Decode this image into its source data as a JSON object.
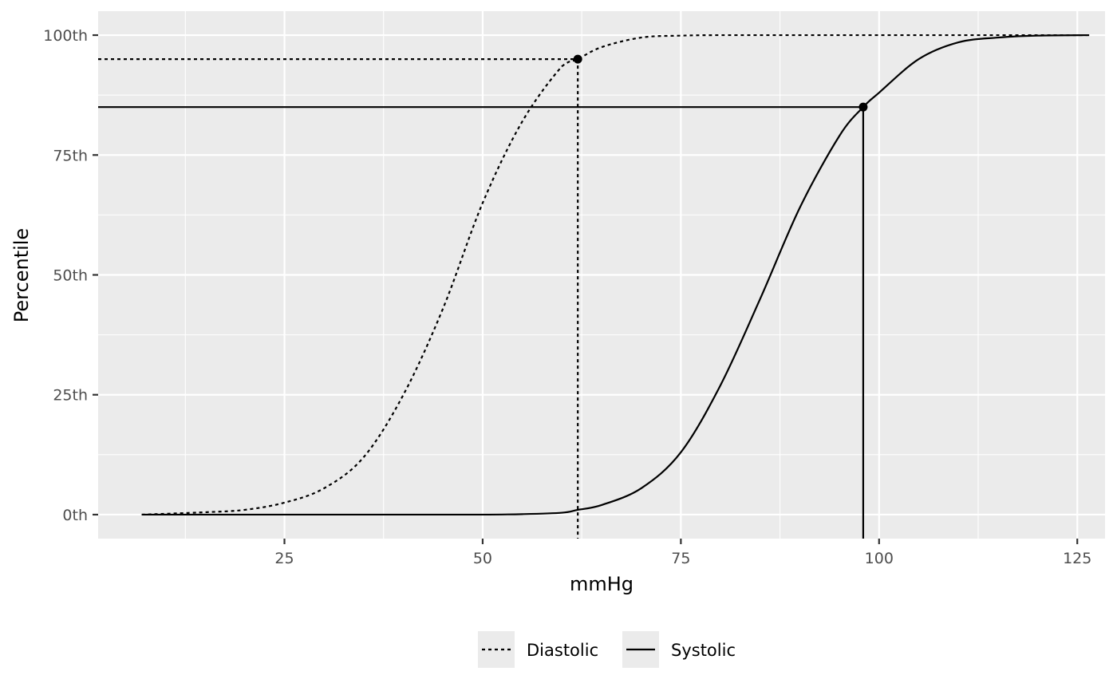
{
  "chart_data": {
    "type": "line",
    "title": "",
    "xlabel": "mmHg",
    "ylabel": "Percentile",
    "xlim": [
      1.5,
      128.5
    ],
    "ylim": [
      -5,
      105
    ],
    "x_ticks": [
      25,
      50,
      75,
      100,
      125
    ],
    "x_tick_labels": [
      "25",
      "50",
      "75",
      "100",
      "125"
    ],
    "y_ticks": [
      0,
      25,
      50,
      75,
      100
    ],
    "y_tick_labels": [
      "0th",
      "25th",
      "50th",
      "75th",
      "100th"
    ],
    "grid": true,
    "legend_position": "bottom",
    "series": [
      {
        "name": "Diastolic",
        "linetype": "dotted",
        "x": [
          7,
          15,
          20,
          25,
          30,
          35,
          40,
          45,
          50,
          55,
          60,
          62,
          65,
          70,
          75,
          80,
          90,
          100,
          110,
          120,
          126.5
        ],
        "y": [
          0,
          0.5,
          1,
          2.5,
          5.5,
          12,
          25,
          43,
          65,
          82,
          93.5,
          95,
          97.5,
          99.5,
          99.9,
          100,
          100,
          100,
          100,
          100,
          100
        ]
      },
      {
        "name": "Systolic",
        "linetype": "solid",
        "x": [
          7,
          20,
          40,
          50,
          55,
          60,
          62,
          65,
          70,
          75,
          80,
          85,
          90,
          95,
          98,
          100,
          105,
          110,
          115,
          120,
          126.5
        ],
        "y": [
          0,
          0,
          0,
          0,
          0.1,
          0.4,
          1,
          2,
          5.5,
          13,
          27,
          45,
          64,
          79,
          85,
          88,
          95,
          98.5,
          99.5,
          99.9,
          100
        ]
      }
    ],
    "markers": [
      {
        "series": "Diastolic",
        "x": 62,
        "y": 95
      },
      {
        "series": "Systolic",
        "x": 98,
        "y": 85
      }
    ]
  }
}
